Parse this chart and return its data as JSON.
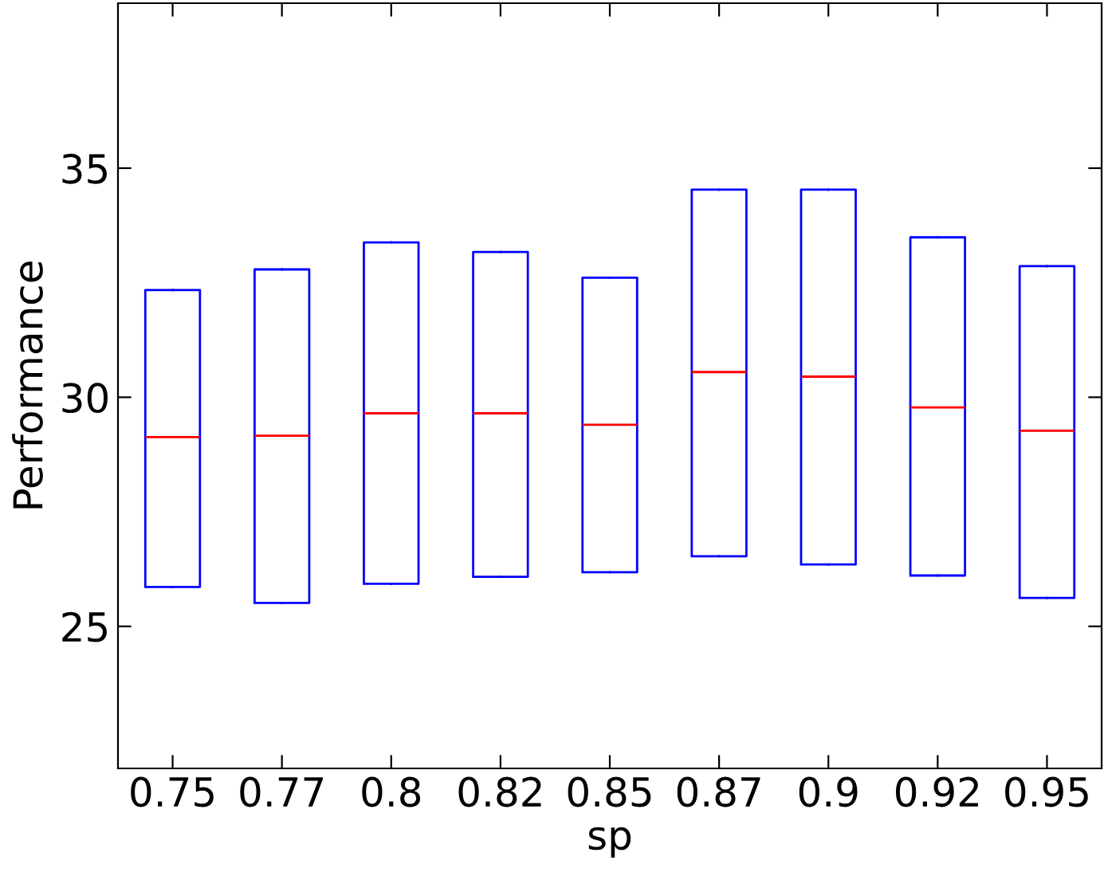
{
  "chart_data": {
    "type": "box",
    "xlabel": "sp",
    "ylabel": "Performance",
    "categories": [
      "0.75",
      "0.77",
      "0.8",
      "0.82",
      "0.85",
      "0.87",
      "0.9",
      "0.92",
      "0.95"
    ],
    "series": [
      {
        "color": "#0000ff",
        "boxes": [
          {
            "low": 25.86,
            "q1": 25.86,
            "median": 29.13,
            "q3": 32.34,
            "high": 32.34
          },
          {
            "low": 25.51,
            "q1": 25.51,
            "median": 29.16,
            "q3": 32.79,
            "high": 32.79
          },
          {
            "low": 25.93,
            "q1": 25.93,
            "median": 29.65,
            "q3": 33.38,
            "high": 33.38
          },
          {
            "low": 26.08,
            "q1": 26.08,
            "median": 29.65,
            "q3": 33.17,
            "high": 33.17
          },
          {
            "low": 26.18,
            "q1": 26.18,
            "median": 29.4,
            "q3": 32.61,
            "high": 32.61
          },
          {
            "low": 26.53,
            "q1": 26.53,
            "median": 30.55,
            "q3": 34.53,
            "high": 34.53
          },
          {
            "low": 26.35,
            "q1": 26.35,
            "median": 30.45,
            "q3": 34.53,
            "high": 34.53
          },
          {
            "low": 26.11,
            "q1": 26.11,
            "median": 29.78,
            "q3": 33.49,
            "high": 33.49
          },
          {
            "low": 25.62,
            "q1": 25.62,
            "median": 29.27,
            "q3": 32.86,
            "high": 32.86
          }
        ]
      }
    ],
    "ylim": [
      21.9,
      38.6
    ],
    "yticks": [
      25,
      30,
      35
    ],
    "grid": false,
    "legend": false
  }
}
